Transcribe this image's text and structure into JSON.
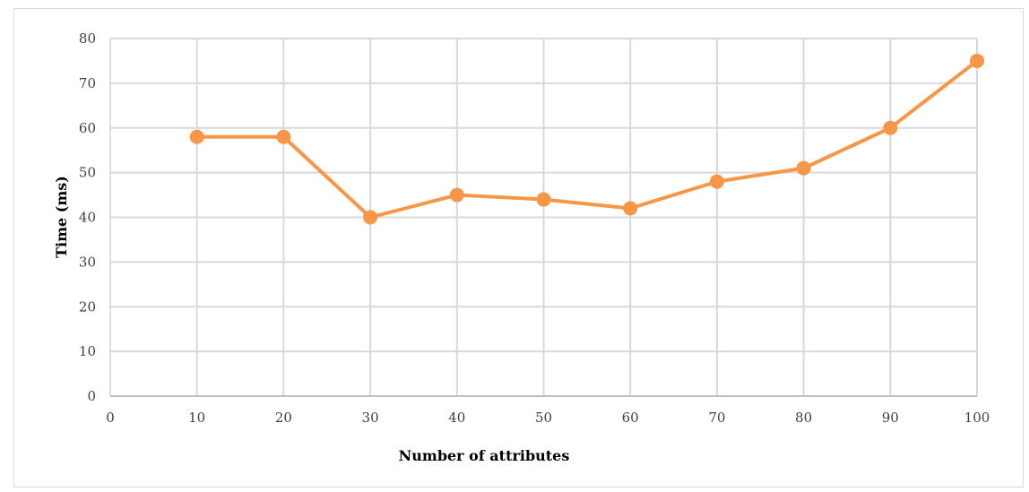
{
  "chart_data": {
    "type": "line",
    "title": "",
    "xlabel": "Number of attributes",
    "ylabel": "Time (ms)",
    "xlim": [
      0,
      100
    ],
    "ylim": [
      0,
      80
    ],
    "x_ticks": [
      0,
      10,
      20,
      30,
      40,
      50,
      60,
      70,
      80,
      90,
      100
    ],
    "y_ticks": [
      0,
      10,
      20,
      30,
      40,
      50,
      60,
      70,
      80
    ],
    "grid": true,
    "legend": "none",
    "series": [
      {
        "x": [
          10,
          20,
          30,
          40,
          50,
          60,
          70,
          80,
          90,
          100
        ],
        "values": [
          58,
          58,
          40,
          45,
          44,
          42,
          48,
          51,
          60,
          75
        ],
        "color": "#f79646",
        "marker": "circle"
      }
    ]
  },
  "colors": {
    "grid": "#d9d9d9",
    "axis": "#bfbfbf",
    "series": "#f79646"
  }
}
